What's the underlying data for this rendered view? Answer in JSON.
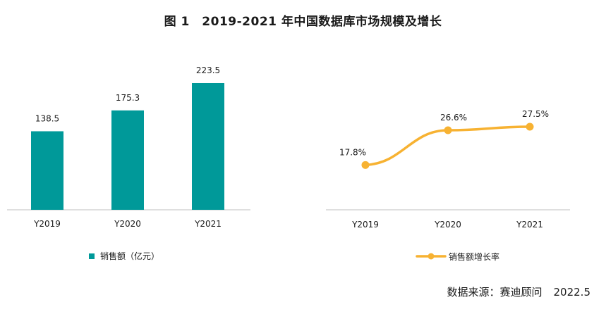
{
  "title": "图 1　2019-2021 年中国数据库市场规模及增长",
  "source": {
    "label": "数据来源：赛迪顾问",
    "date": "2022.5"
  },
  "colors": {
    "bar": "#009999",
    "line": "#F7B232",
    "axis": "#bfbfbf"
  },
  "chart_data": [
    {
      "type": "bar",
      "categories": [
        "Y2019",
        "Y2020",
        "Y2021"
      ],
      "series": [
        {
          "name": "销售额（亿元）",
          "values": [
            138.5,
            175.3,
            223.5
          ]
        }
      ],
      "value_labels": [
        "138.5",
        "175.3",
        "223.5"
      ],
      "legend": "bottom",
      "grid": false
    },
    {
      "type": "line",
      "categories": [
        "Y2019",
        "Y2020",
        "Y2021"
      ],
      "series": [
        {
          "name": "销售额增长率",
          "values": [
            17.8,
            26.6,
            27.5
          ]
        }
      ],
      "value_labels": [
        "17.8%",
        "26.6%",
        "27.5%"
      ],
      "legend": "bottom",
      "grid": false
    }
  ]
}
